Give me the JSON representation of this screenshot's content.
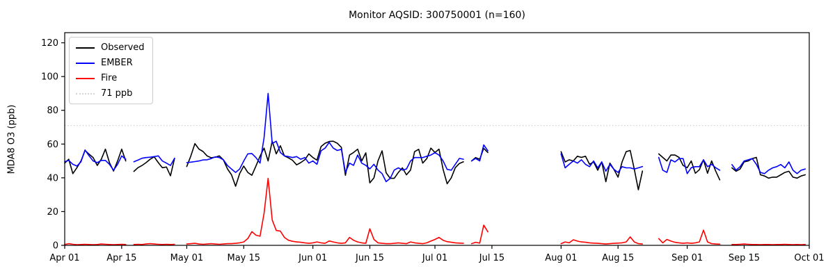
{
  "chart_data": {
    "type": "line",
    "title": "Monitor AQSID: 300750001 (n=160)",
    "ylabel": "MDA8 O3 (ppb)",
    "ylim": [
      0,
      126
    ],
    "y_ticks": [
      0,
      20,
      40,
      60,
      80,
      100,
      120
    ],
    "x_days_total": 183,
    "x_ticks": [
      {
        "day": 0,
        "label": "Apr 01"
      },
      {
        "day": 14,
        "label": "Apr 15"
      },
      {
        "day": 30,
        "label": "May 01"
      },
      {
        "day": 44,
        "label": "May 15"
      },
      {
        "day": 61,
        "label": "Jun 01"
      },
      {
        "day": 75,
        "label": "Jun 15"
      },
      {
        "day": 91,
        "label": "Jul 01"
      },
      {
        "day": 105,
        "label": "Jul 15"
      },
      {
        "day": 122,
        "label": "Aug 01"
      },
      {
        "day": 136,
        "label": "Aug 15"
      },
      {
        "day": 153,
        "label": "Sep 01"
      },
      {
        "day": 167,
        "label": "Sep 15"
      },
      {
        "day": 183,
        "label": "Oct 01"
      }
    ],
    "threshold": {
      "value": 71,
      "label": "71 ppb",
      "color": "#d3d3d3",
      "style": "dotted"
    },
    "grid": false,
    "legend_position": "upper-left",
    "series": [
      {
        "name": "Observed",
        "color": "#000000",
        "values": [
          48.7,
          51,
          42.5,
          46,
          50,
          56.2,
          54,
          52,
          47.3,
          51,
          57,
          49,
          44,
          50,
          57,
          50,
          null,
          43.8,
          46,
          47.3,
          49,
          51,
          52.4,
          49,
          46,
          46.4,
          41.2,
          51.6,
          null,
          null,
          46.7,
          53,
          60.3,
          57,
          55.6,
          53,
          51.9,
          52.2,
          53,
          50.7,
          45.3,
          41.8,
          35,
          42.5,
          47,
          43.2,
          41.5,
          47,
          52.8,
          57.6,
          50,
          61.7,
          54.2,
          59,
          53,
          51.8,
          50.4,
          47.7,
          49,
          50.7,
          54.2,
          52,
          50.5,
          58.5,
          60.5,
          61.5,
          61.7,
          60.5,
          58,
          41.5,
          53.5,
          55,
          57,
          50,
          54.8,
          37,
          40,
          50,
          56,
          43,
          39.7,
          39.7,
          43.2,
          45.9,
          41.8,
          44.6,
          55.5,
          56.9,
          48.7,
          51.4,
          57.6,
          55,
          57,
          45,
          36.5,
          40,
          46,
          48.5,
          49.5,
          null,
          50,
          52,
          51,
          57.5,
          55,
          null,
          null,
          null,
          null,
          null,
          null,
          null,
          null,
          null,
          null,
          null,
          null,
          null,
          null,
          null,
          null,
          null,
          55.5,
          49.4,
          50.7,
          50,
          52.8,
          52.1,
          52.8,
          48,
          49.4,
          44.5,
          49.4,
          37.7,
          48.7,
          45,
          40.4,
          49.4,
          55.5,
          56.2,
          45,
          32.9,
          44,
          null,
          null,
          null,
          54.2,
          52.1,
          50,
          53.5,
          53.5,
          52.1,
          47.3,
          46,
          50,
          42.7,
          44.8,
          50.7,
          42.7,
          50,
          44,
          38.8,
          null,
          null,
          45.9,
          43.9,
          45.2,
          49.4,
          50,
          51.4,
          52.1,
          41.8,
          41.1,
          39.8,
          40.4,
          40.4,
          41.8,
          43.2,
          43.9,
          40.4,
          39.8,
          41.1,
          41.8
        ]
      },
      {
        "name": "EMBER",
        "color": "#0000ff",
        "values": [
          49.5,
          50.3,
          48,
          47,
          49.5,
          56.5,
          53,
          50,
          49,
          50.3,
          50.3,
          48,
          44.5,
          48,
          53,
          51,
          null,
          49.5,
          50.5,
          51.6,
          52,
          52.2,
          52.6,
          53,
          50,
          48.7,
          47.3,
          51.6,
          null,
          null,
          49,
          49.3,
          49.6,
          50,
          50.6,
          50.7,
          51.4,
          52.4,
          52,
          50.7,
          47.3,
          45.2,
          43.2,
          45.2,
          50,
          54.2,
          54.4,
          52,
          48.7,
          63.8,
          90,
          60.3,
          61.7,
          55,
          53,
          52.6,
          52,
          52.6,
          51,
          52,
          48.7,
          50,
          48,
          56,
          57.6,
          61,
          57.6,
          56.2,
          56.9,
          43.2,
          48.7,
          47.4,
          53.5,
          48.7,
          47.4,
          45.3,
          48,
          44.6,
          42.5,
          37.7,
          39.7,
          44.6,
          45.9,
          44.6,
          45.2,
          50,
          52,
          52,
          52,
          52.8,
          53.5,
          54.9,
          53.5,
          50,
          45,
          44.5,
          48,
          51.5,
          51,
          null,
          50,
          51.5,
          50,
          59.5,
          56,
          null,
          null,
          null,
          null,
          null,
          null,
          null,
          null,
          null,
          null,
          null,
          null,
          null,
          null,
          null,
          null,
          null,
          54.2,
          45.9,
          48,
          50,
          48.7,
          50.7,
          48,
          46.6,
          50,
          45.9,
          49.4,
          43.9,
          48,
          45,
          43.2,
          46.6,
          45.9,
          45.9,
          45.2,
          45.9,
          46.7,
          null,
          null,
          null,
          52.1,
          44.5,
          43.2,
          50.7,
          49.4,
          51.4,
          51.4,
          42.5,
          46,
          46.6,
          46.6,
          50.7,
          46.6,
          48,
          46,
          44.5,
          null,
          null,
          47.8,
          44.5,
          46.6,
          50,
          50.7,
          51.4,
          48,
          43.2,
          42.5,
          44.5,
          45.9,
          46.6,
          47.9,
          45.9,
          49.4,
          44.5,
          42.5,
          44.5,
          45.2
        ]
      },
      {
        "name": "Fire",
        "color": "#ff0000",
        "values": [
          0.5,
          1,
          0.6,
          0.4,
          0.5,
          0.6,
          0.5,
          0.4,
          0.5,
          0.8,
          0.6,
          0.5,
          0.4,
          0.5,
          0.6,
          0.5,
          null,
          0.5,
          0.6,
          0.5,
          0.8,
          1,
          0.8,
          0.6,
          0.5,
          0.6,
          0.5,
          0.6,
          null,
          null,
          0.8,
          1,
          1.2,
          0.8,
          0.6,
          0.8,
          1,
          0.8,
          0.6,
          0.8,
          1,
          1,
          1.2,
          1.5,
          2,
          4,
          8.1,
          6,
          5.4,
          19,
          39.7,
          15,
          8.8,
          8.4,
          4.7,
          3,
          2.4,
          2,
          1.8,
          1.5,
          1.2,
          1.5,
          2,
          1.5,
          1.2,
          2.6,
          2,
          1.5,
          1.2,
          1.5,
          4.7,
          3,
          2,
          1.5,
          1.2,
          9.8,
          3.5,
          1.5,
          1.2,
          1,
          1,
          1.2,
          1.5,
          1.2,
          1,
          2,
          1.5,
          1.2,
          1,
          1.5,
          2.5,
          3.5,
          4.7,
          3,
          2.2,
          1.8,
          1.5,
          1.3,
          1.2,
          null,
          1,
          1.8,
          1.3,
          12,
          8,
          null,
          null,
          null,
          null,
          null,
          null,
          null,
          null,
          null,
          null,
          null,
          null,
          null,
          null,
          null,
          null,
          null,
          1,
          2,
          1.5,
          3.3,
          2.5,
          2,
          1.8,
          1.5,
          1.3,
          1.2,
          1,
          0.8,
          1,
          1.2,
          1.3,
          1.5,
          2,
          5,
          2,
          1,
          0.8,
          null,
          null,
          null,
          4,
          1.5,
          3.5,
          2.5,
          1.8,
          1.5,
          1.2,
          1.5,
          1.2,
          1.5,
          2,
          9,
          2,
          1,
          0.8,
          0.7,
          null,
          null,
          0.5,
          0.5,
          0.6,
          0.8,
          0.6,
          0.5,
          0.5,
          0.4,
          0.5,
          0.5,
          0.4,
          0.5,
          0.5,
          0.6,
          0.5,
          0.4,
          0.5,
          0.4,
          0.5
        ]
      }
    ],
    "legend": [
      {
        "label": "Observed",
        "color": "#000000",
        "style": "solid"
      },
      {
        "label": "EMBER",
        "color": "#0000ff",
        "style": "solid"
      },
      {
        "label": "Fire",
        "color": "#ff0000",
        "style": "solid"
      },
      {
        "label": "71 ppb",
        "color": "#d3d3d3",
        "style": "dotted"
      }
    ]
  }
}
